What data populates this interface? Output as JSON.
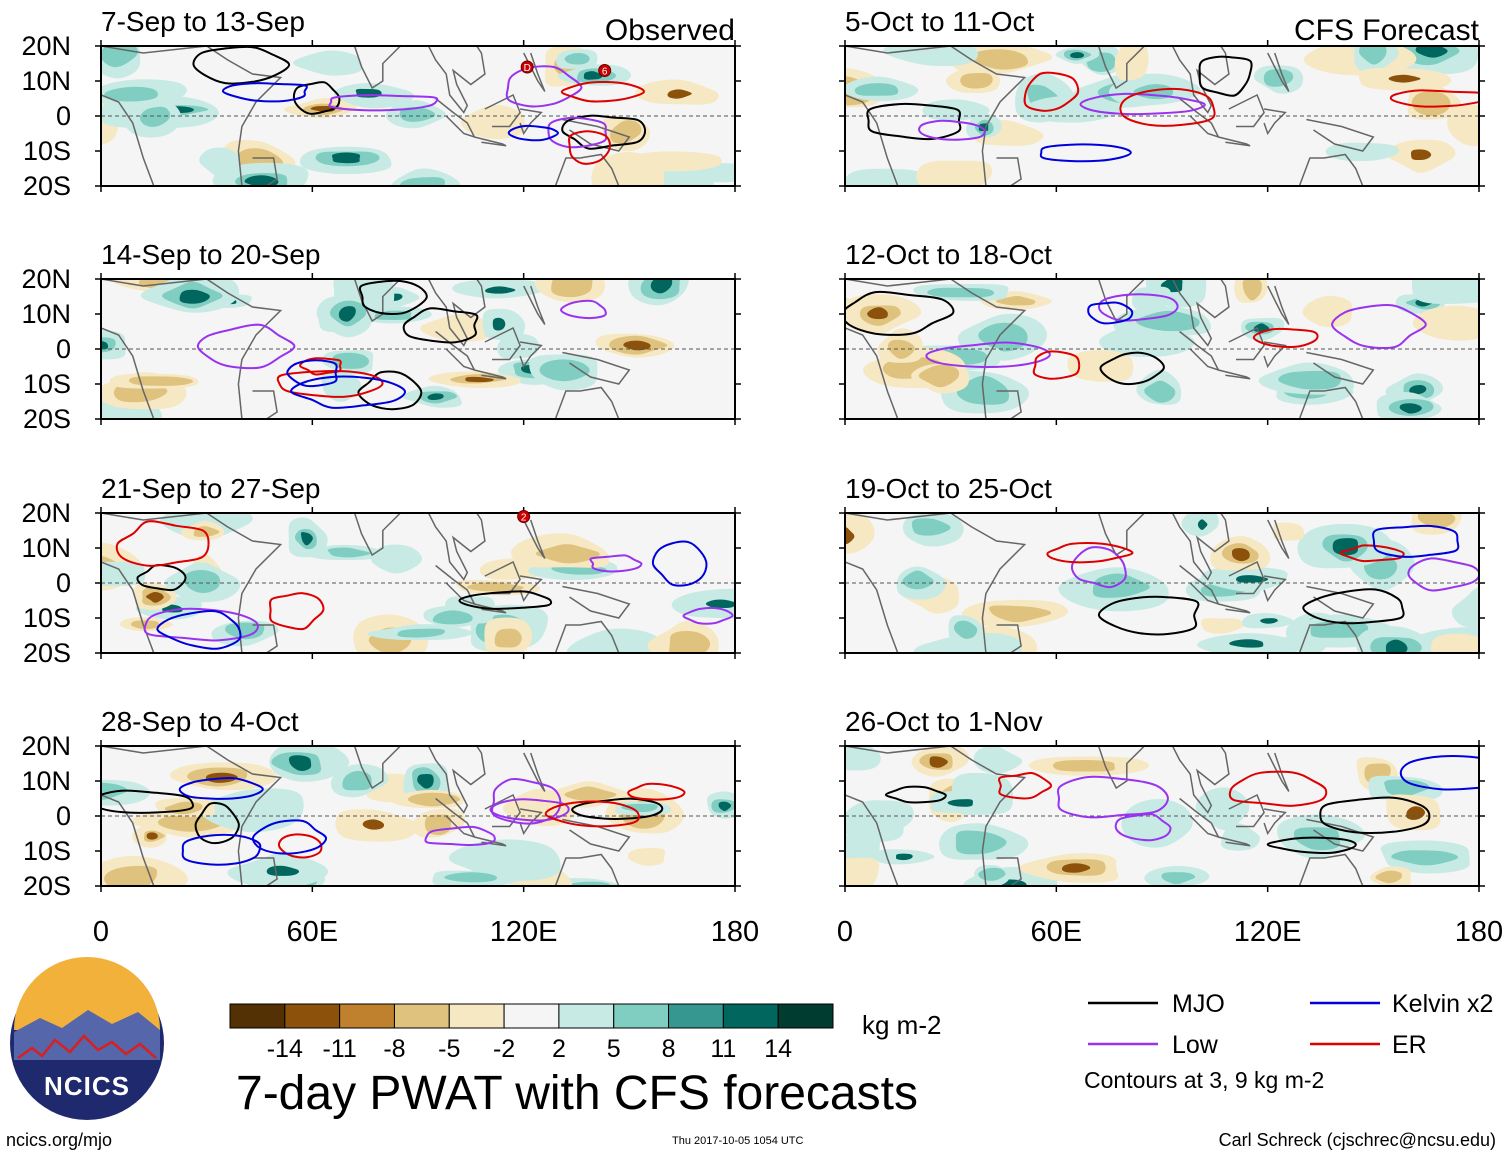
{
  "chart_data": {
    "type": "heatmap",
    "title": "7-day PWAT with CFS forecasts",
    "variable": "precipitable water anomaly (PWAT)",
    "units": "kg m-2",
    "x_axis": {
      "range": [
        0,
        180
      ],
      "ticks": [
        0,
        60,
        120,
        180
      ],
      "tick_labels": [
        "0",
        "60E",
        "120E",
        "180"
      ]
    },
    "y_axis": {
      "range": [
        -20,
        20
      ],
      "ticks": [
        20,
        10,
        0,
        -10,
        -20
      ],
      "tick_labels": [
        "20N",
        "10N",
        "0",
        "10S",
        "20S"
      ]
    },
    "columns": [
      {
        "name": "Observed",
        "panels": [
          "7-Sep to 13-Sep",
          "14-Sep to 20-Sep",
          "21-Sep to 27-Sep",
          "28-Sep to 4-Oct"
        ]
      },
      {
        "name": "CFS Forecast",
        "panels": [
          "5-Oct to 11-Oct",
          "12-Oct to 18-Oct",
          "19-Oct to 25-Oct",
          "26-Oct to 1-Nov"
        ]
      }
    ],
    "colorbar": {
      "bounds": [
        "-14",
        "-11",
        "-8",
        "-5",
        "-2",
        "2",
        "5",
        "8",
        "11",
        "14"
      ],
      "colors": [
        "#543005",
        "#8c510a",
        "#bf812d",
        "#dfc27d",
        "#f6e8c3",
        "#f5f5f5",
        "#c7eae5",
        "#80cdc1",
        "#35978f",
        "#01665e",
        "#003c30"
      ]
    },
    "legend": [
      {
        "label": "MJO",
        "color": "#000000"
      },
      {
        "label": "Kelvin x2",
        "color": "#0000dd"
      },
      {
        "label": "Low",
        "color": "#9933ee"
      },
      {
        "label": "ER",
        "color": "#dd0000"
      }
    ],
    "contour_note": "Contours at 3, 9 kg m-2",
    "storm_markers": [
      "D",
      "T",
      "6",
      "2"
    ]
  },
  "footer": {
    "website": "ncics.org/mjo",
    "timestamp": "Thu 2017-10-05 1054 UTC",
    "credit": "Carl Schreck (cjschrec@ncsu.edu)"
  },
  "logo": {
    "text": "NCICS",
    "icon": "ncics-logo"
  }
}
